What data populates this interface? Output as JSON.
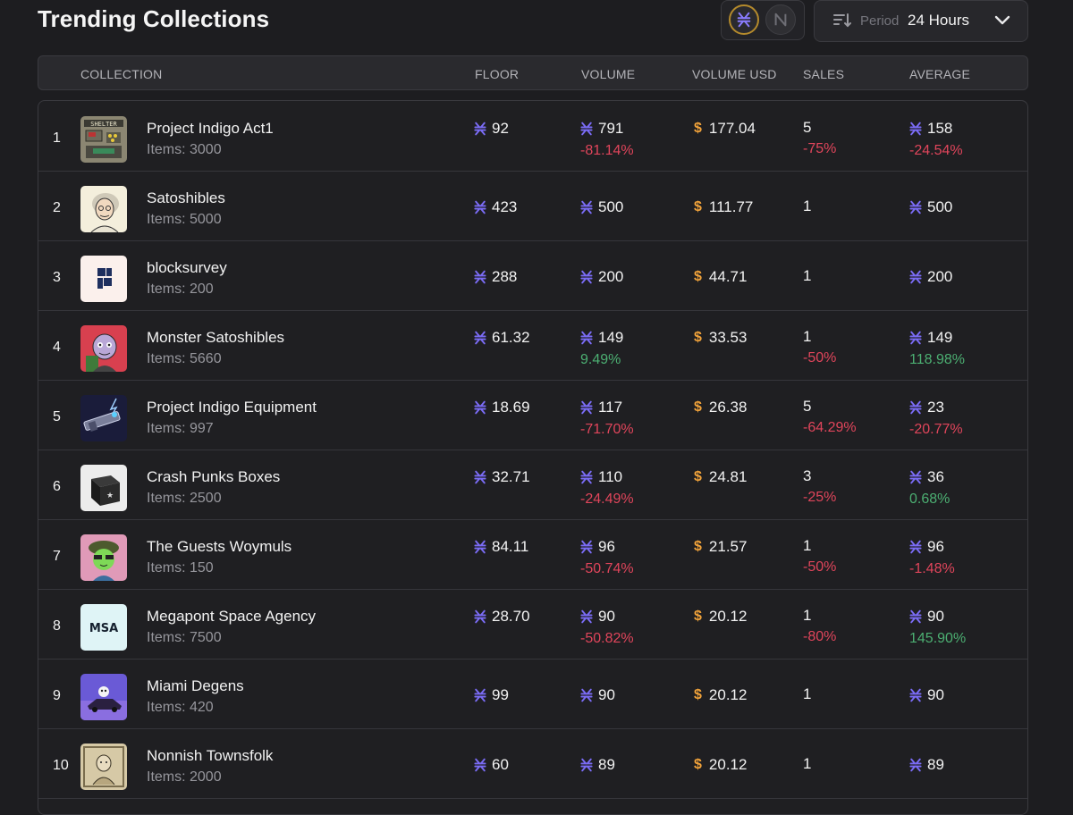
{
  "page_title": "Trending Collections",
  "period": {
    "label": "Period",
    "value": "24 Hours"
  },
  "columns": {
    "collection": "COLLECTION",
    "floor": "FLOOR",
    "volume": "VOLUME",
    "volume_usd": "VOLUME USD",
    "sales": "SALES",
    "average": "AVERAGE"
  },
  "colors": {
    "stx_icon": "#7b6cf6",
    "usd": "#f0a23a",
    "negative": "#e0455b",
    "positive": "#4caf72"
  },
  "rows": [
    {
      "rank": "1",
      "name": "Project Indigo Act1",
      "items": "Items: 3000",
      "floor": "92",
      "volume": "791",
      "volume_change": "-81.14%",
      "volume_change_dir": "neg",
      "volume_usd": "177.04",
      "sales": "5",
      "sales_change": "-75%",
      "sales_change_dir": "neg",
      "average": "158",
      "average_change": "-24.54%",
      "average_change_dir": "neg"
    },
    {
      "rank": "2",
      "name": "Satoshibles",
      "items": "Items: 5000",
      "floor": "423",
      "volume": "500",
      "volume_change": "",
      "volume_usd": "111.77",
      "sales": "1",
      "sales_change": "",
      "average": "500",
      "average_change": ""
    },
    {
      "rank": "3",
      "name": "blocksurvey",
      "items": "Items: 200",
      "floor": "288",
      "volume": "200",
      "volume_change": "",
      "volume_usd": "44.71",
      "sales": "1",
      "sales_change": "",
      "average": "200",
      "average_change": ""
    },
    {
      "rank": "4",
      "name": "Monster Satoshibles",
      "items": "Items: 5660",
      "floor": "61.32",
      "volume": "149",
      "volume_change": "9.49%",
      "volume_change_dir": "pos",
      "volume_usd": "33.53",
      "sales": "1",
      "sales_change": "-50%",
      "sales_change_dir": "neg",
      "average": "149",
      "average_change": "118.98%",
      "average_change_dir": "pos"
    },
    {
      "rank": "5",
      "name": "Project Indigo Equipment",
      "items": "Items: 997",
      "floor": "18.69",
      "volume": "117",
      "volume_change": "-71.70%",
      "volume_change_dir": "neg",
      "volume_usd": "26.38",
      "sales": "5",
      "sales_change": "-64.29%",
      "sales_change_dir": "neg",
      "average": "23",
      "average_change": "-20.77%",
      "average_change_dir": "neg"
    },
    {
      "rank": "6",
      "name": "Crash Punks Boxes",
      "items": "Items: 2500",
      "floor": "32.71",
      "volume": "110",
      "volume_change": "-24.49%",
      "volume_change_dir": "neg",
      "volume_usd": "24.81",
      "sales": "3",
      "sales_change": "-25%",
      "sales_change_dir": "neg",
      "average": "36",
      "average_change": "0.68%",
      "average_change_dir": "pos"
    },
    {
      "rank": "7",
      "name": "The Guests Woymuls",
      "items": "Items: 150",
      "floor": "84.11",
      "volume": "96",
      "volume_change": "-50.74%",
      "volume_change_dir": "neg",
      "volume_usd": "21.57",
      "sales": "1",
      "sales_change": "-50%",
      "sales_change_dir": "neg",
      "average": "96",
      "average_change": "-1.48%",
      "average_change_dir": "neg"
    },
    {
      "rank": "8",
      "name": "Megapont Space Agency",
      "items": "Items: 7500",
      "floor": "28.70",
      "volume": "90",
      "volume_change": "-50.82%",
      "volume_change_dir": "neg",
      "volume_usd": "20.12",
      "sales": "1",
      "sales_change": "-80%",
      "sales_change_dir": "neg",
      "average": "90",
      "average_change": "145.90%",
      "average_change_dir": "pos"
    },
    {
      "rank": "9",
      "name": "Miami Degens",
      "items": "Items: 420",
      "floor": "99",
      "volume": "90",
      "volume_change": "",
      "volume_usd": "20.12",
      "sales": "1",
      "sales_change": "",
      "average": "90",
      "average_change": ""
    },
    {
      "rank": "10",
      "name": "Nonnish Townsfolk",
      "items": "Items: 2000",
      "floor": "60",
      "volume": "89",
      "volume_change": "",
      "volume_usd": "20.12",
      "sales": "1",
      "sales_change": "",
      "average": "89",
      "average_change": ""
    }
  ]
}
